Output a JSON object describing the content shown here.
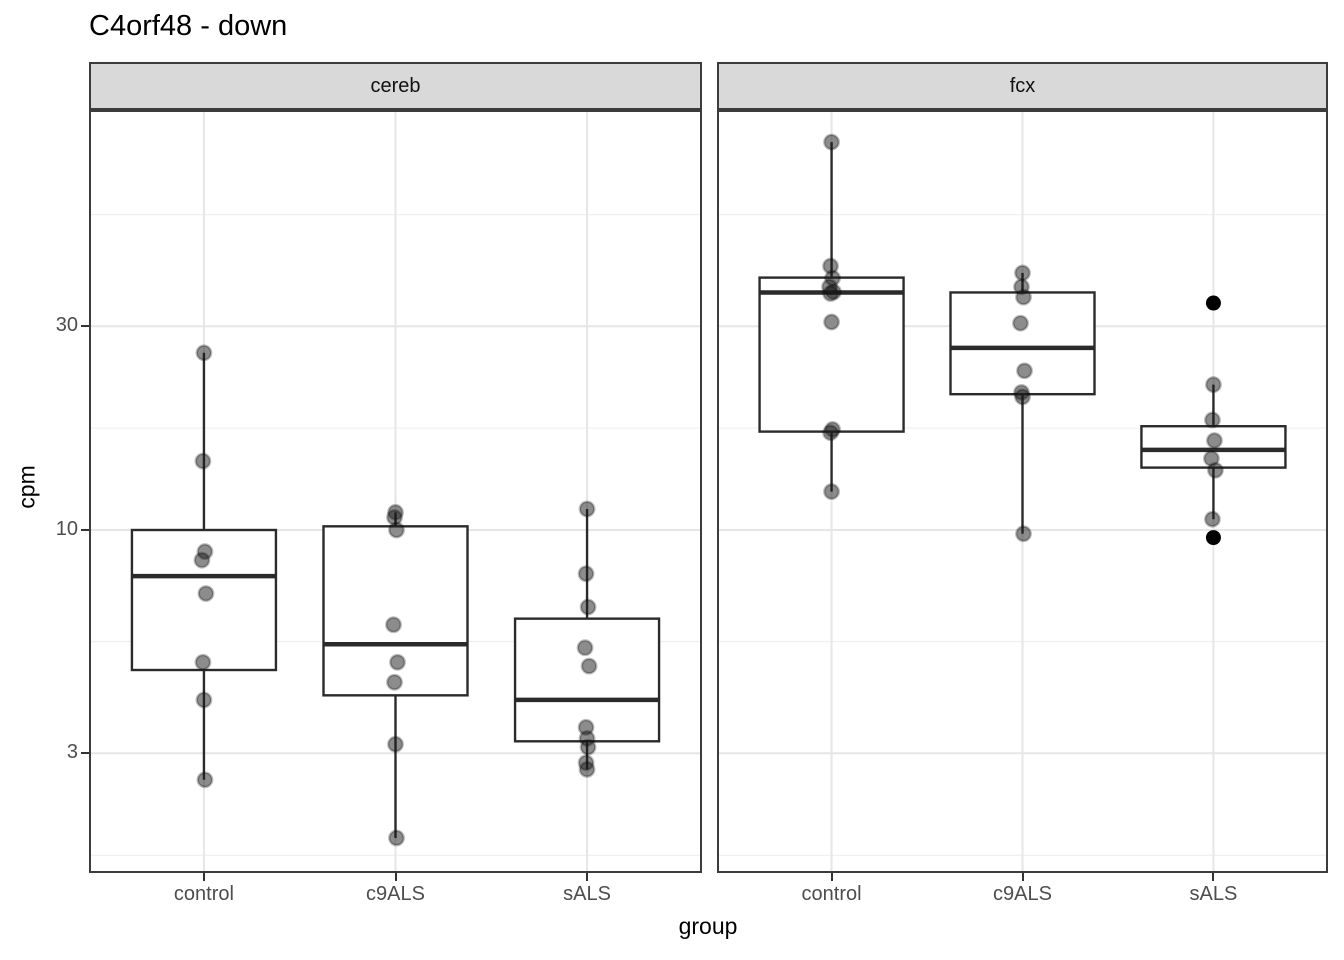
{
  "chart_data": {
    "type": "boxplot",
    "title": "C4orf48 - down",
    "xlabel": "group",
    "ylabel": "cpm",
    "y_scale": "log10",
    "y_ticks": [
      3,
      10,
      30
    ],
    "y_tick_labels": [
      "3",
      "10",
      "30"
    ],
    "y_minor_ticks": [
      1.73,
      5.48,
      17.32,
      54.77
    ],
    "ylim": [
      1.57,
      96
    ],
    "grid": true,
    "legend": "none",
    "categories": [
      "control",
      "c9ALS",
      "sALS"
    ],
    "facets": [
      {
        "label": "cereb",
        "groups": [
          {
            "name": "control",
            "box": {
              "q1": 4.7,
              "median": 7.8,
              "q3": 10.0
            },
            "whiskers": {
              "lo": 2.6,
              "hi": 26.0
            },
            "points": [
              26.0,
              14.5,
              8.9,
              8.5,
              7.1,
              4.9,
              4.0,
              2.6
            ],
            "outliers": []
          },
          {
            "name": "c9ALS",
            "box": {
              "q1": 4.1,
              "median": 5.4,
              "q3": 10.2
            },
            "whiskers": {
              "lo": 1.9,
              "hi": 11.0
            },
            "points": [
              11.0,
              10.7,
              10.0,
              6.0,
              4.9,
              4.4,
              3.15,
              1.9
            ],
            "outliers": []
          },
          {
            "name": "sALS",
            "box": {
              "q1": 3.2,
              "median": 4.0,
              "q3": 6.2
            },
            "whiskers": {
              "lo": 2.75,
              "hi": 11.2
            },
            "points": [
              11.2,
              7.9,
              6.6,
              5.3,
              4.8,
              3.45,
              3.25,
              3.1,
              2.85,
              2.75
            ],
            "outliers": []
          }
        ]
      },
      {
        "label": "fcx",
        "groups": [
          {
            "name": "control",
            "box": {
              "q1": 17.0,
              "median": 36.0,
              "q3": 39.0
            },
            "whiskers": {
              "lo": 12.3,
              "hi": 81.0
            },
            "points": [
              81.0,
              41.5,
              38.9,
              37.1,
              36.1,
              35.8,
              30.7,
              17.2,
              16.9,
              12.3
            ],
            "outliers": []
          },
          {
            "name": "c9ALS",
            "box": {
              "q1": 20.8,
              "median": 26.7,
              "q3": 36.0
            },
            "whiskers": {
              "lo": 9.8,
              "hi": 40.0
            },
            "points": [
              40.0,
              37.1,
              35.1,
              30.5,
              23.6,
              21.0,
              20.5,
              9.8
            ],
            "outliers": []
          },
          {
            "name": "sALS",
            "box": {
              "q1": 14.0,
              "median": 15.4,
              "q3": 17.5
            },
            "whiskers": {
              "lo": 10.6,
              "hi": 21.9
            },
            "points": [
              21.9,
              18.1,
              16.2,
              14.7,
              13.8,
              10.6
            ],
            "outliers": [
              34.0,
              9.6
            ]
          }
        ]
      }
    ],
    "colors": {
      "strip_fill": "#d9d9d9",
      "strip_border": "#3c3c3c",
      "panel_border": "#3c3c3c",
      "grid_major": "#e6e6e6",
      "grid_minor": "#f0f0f0",
      "box_stroke": "#2b2b2b",
      "point_fill": "#1a1a1a",
      "outlier_fill": "#000000",
      "tick_label": "#4d4d4d",
      "tick_mark": "#333333",
      "text": "#000000"
    }
  }
}
